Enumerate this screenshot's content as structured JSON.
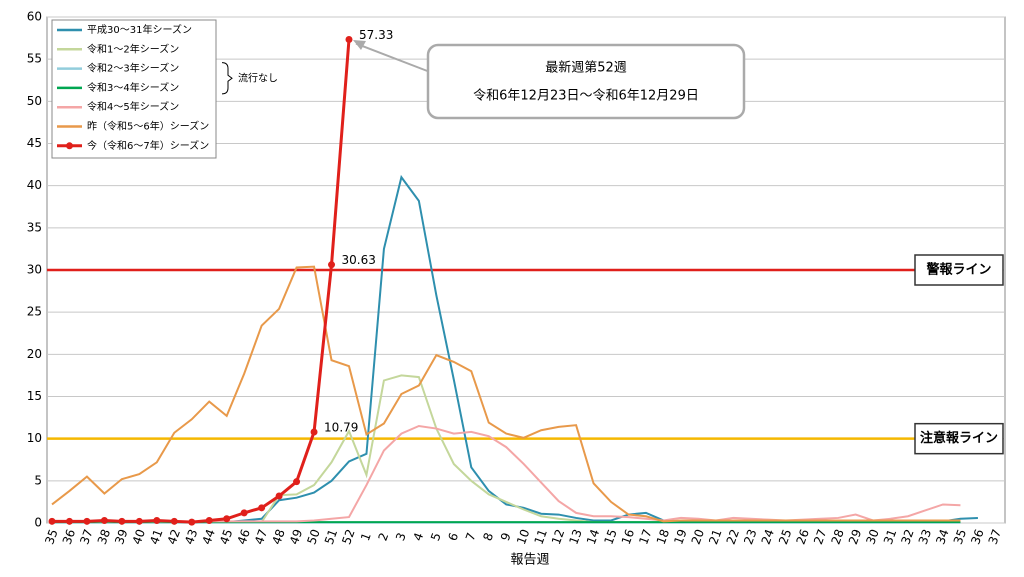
{
  "chart_data": {
    "type": "line",
    "x_label": "報告週",
    "categories": [
      "35",
      "36",
      "37",
      "38",
      "39",
      "40",
      "41",
      "42",
      "43",
      "44",
      "45",
      "46",
      "47",
      "48",
      "49",
      "50",
      "51",
      "52",
      "1",
      "2",
      "3",
      "4",
      "5",
      "6",
      "7",
      "8",
      "9",
      "10",
      "11",
      "12",
      "13",
      "14",
      "15",
      "16",
      "17",
      "18",
      "19",
      "20",
      "21",
      "22",
      "23",
      "24",
      "25",
      "26",
      "27",
      "28",
      "29",
      "30",
      "31",
      "32",
      "33",
      "34",
      "35",
      "36",
      "37"
    ],
    "ylim": [
      0,
      60
    ],
    "yticks": [
      0,
      5,
      10,
      15,
      20,
      25,
      30,
      35,
      40,
      45,
      50,
      55,
      60
    ],
    "grid": true,
    "legend": "top-left",
    "legend_note": "流行なし",
    "series": [
      {
        "name": "平成30～31年シーズン",
        "color": "#2e8fae",
        "values": [
          0.1,
          0.1,
          0.1,
          0.1,
          0.1,
          0.1,
          0.1,
          0.1,
          0.1,
          0.1,
          0.1,
          0.3,
          0.5,
          2.7,
          3.0,
          3.6,
          5.0,
          7.3,
          8.2,
          32.5,
          41.0,
          38.2,
          27.0,
          17.0,
          6.6,
          3.8,
          2.2,
          1.8,
          1.1,
          1.0,
          0.6,
          0.3,
          0.3,
          1.0,
          1.2,
          0.3,
          0.2,
          0.2,
          0.2,
          0.2,
          0.2,
          0.2,
          0.2,
          0.2,
          0.2,
          0.2,
          0.2,
          0.2,
          0.2,
          0.2,
          0.2,
          0.2,
          0.5,
          0.6,
          null
        ]
      },
      {
        "name": "令和1～2年シーズン",
        "color": "#c4d79b",
        "values": [
          0.1,
          0.1,
          0.1,
          0.1,
          0.1,
          0.1,
          0.1,
          0.1,
          0.1,
          0.1,
          0.1,
          0.1,
          0.1,
          3.3,
          3.4,
          4.5,
          7.2,
          10.9,
          5.7,
          16.9,
          17.5,
          17.3,
          11.2,
          7.0,
          5.0,
          3.4,
          2.5,
          1.6,
          0.8,
          0.5,
          0.3,
          0.1,
          0.1,
          0.1,
          0.1,
          0.1,
          0.1,
          0.1,
          0.1,
          0.1,
          0.1,
          0.1,
          0.1,
          0.1,
          0.1,
          0.1,
          0.1,
          0.1,
          0.1,
          0.1,
          0.1,
          0.1,
          0.1,
          null,
          null
        ]
      },
      {
        "name": "令和2～3年シーズン",
        "color": "#92cddc",
        "values": [
          0.05,
          0.05,
          0.05,
          0.05,
          0.05,
          0.05,
          0.05,
          0.05,
          0.05,
          0.05,
          0.05,
          0.05,
          0.05,
          0.05,
          0.05,
          0.05,
          0.05,
          0.05,
          0.05,
          0.05,
          0.05,
          0.05,
          0.05,
          0.05,
          0.05,
          0.05,
          0.05,
          0.05,
          0.05,
          0.05,
          0.05,
          0.05,
          0.05,
          0.05,
          0.05,
          0.05,
          0.05,
          0.05,
          0.05,
          0.05,
          0.05,
          0.05,
          0.05,
          0.05,
          0.05,
          0.05,
          0.05,
          0.05,
          0.05,
          0.05,
          0.05,
          0.05,
          0.05,
          null,
          null
        ]
      },
      {
        "name": "令和3～4年シーズン",
        "color": "#00a651",
        "values": [
          0.1,
          0.1,
          0.1,
          0.1,
          0.1,
          0.1,
          0.1,
          0.1,
          0.1,
          0.1,
          0.1,
          0.1,
          0.1,
          0.1,
          0.1,
          0.1,
          0.1,
          0.1,
          0.1,
          0.1,
          0.1,
          0.1,
          0.1,
          0.1,
          0.1,
          0.1,
          0.1,
          0.1,
          0.1,
          0.1,
          0.1,
          0.1,
          0.1,
          0.1,
          0.1,
          0.1,
          0.1,
          0.1,
          0.1,
          0.1,
          0.1,
          0.1,
          0.1,
          0.1,
          0.1,
          0.1,
          0.1,
          0.1,
          0.1,
          0.1,
          0.1,
          0.1,
          0.1,
          null,
          null
        ]
      },
      {
        "name": "令和4～5年シーズン",
        "color": "#f4a6a6",
        "values": [
          0.2,
          0.2,
          0.2,
          0.2,
          0.2,
          0.2,
          0.2,
          0.2,
          0.2,
          0.2,
          0.2,
          0.2,
          0.2,
          0.2,
          0.2,
          0.3,
          0.5,
          0.7,
          4.5,
          8.6,
          10.6,
          11.5,
          11.2,
          10.6,
          10.8,
          10.3,
          9.0,
          7.0,
          4.8,
          2.6,
          1.2,
          0.8,
          0.8,
          0.7,
          0.5,
          0.3,
          0.6,
          0.5,
          0.3,
          0.6,
          0.5,
          0.4,
          0.3,
          0.4,
          0.5,
          0.6,
          1.0,
          0.3,
          0.5,
          0.8,
          1.5,
          2.2,
          2.1,
          null,
          null
        ]
      },
      {
        "name": "昨（令和5～6年）シーズン",
        "color": "#e8994a",
        "values": [
          2.2,
          3.8,
          5.5,
          3.5,
          5.2,
          5.8,
          7.2,
          10.7,
          12.3,
          14.4,
          12.7,
          17.7,
          23.4,
          25.4,
          30.3,
          30.4,
          19.3,
          18.6,
          10.5,
          11.8,
          15.3,
          16.3,
          19.9,
          19.1,
          18.0,
          11.9,
          10.6,
          10.1,
          11.0,
          11.4,
          11.6,
          4.7,
          2.5,
          1.0,
          0.8,
          0.2,
          0.3,
          0.3,
          0.3,
          0.3,
          0.3,
          0.3,
          0.3,
          0.3,
          0.3,
          0.3,
          0.3,
          0.3,
          0.3,
          0.3,
          0.3,
          0.3,
          0.3,
          null,
          null
        ]
      },
      {
        "name": "今（令和6～7年）シーズン",
        "color": "#e0201b",
        "marker": "circle",
        "values": [
          0.2,
          0.2,
          0.2,
          0.3,
          0.2,
          0.2,
          0.3,
          0.2,
          0.1,
          0.3,
          0.5,
          1.2,
          1.8,
          3.2,
          4.9,
          10.79,
          30.63,
          57.33,
          null,
          null,
          null,
          null,
          null,
          null,
          null,
          null,
          null,
          null,
          null,
          null,
          null,
          null,
          null,
          null,
          null,
          null,
          null,
          null,
          null,
          null,
          null,
          null,
          null,
          null,
          null,
          null,
          null,
          null,
          null,
          null,
          null,
          null,
          null,
          null,
          null
        ],
        "value_labels": [
          null,
          null,
          null,
          null,
          null,
          null,
          null,
          null,
          null,
          null,
          null,
          null,
          null,
          null,
          null,
          "10.79",
          "30.63",
          "57.33",
          null,
          null,
          null,
          null,
          null,
          null,
          null,
          null,
          null,
          null,
          null,
          null,
          null,
          null,
          null,
          null,
          null,
          null,
          null,
          null,
          null,
          null,
          null,
          null,
          null,
          null,
          null,
          null,
          null,
          null,
          null,
          null,
          null,
          null,
          null,
          null,
          null
        ]
      }
    ],
    "reference_lines": [
      {
        "value": 30,
        "label": "警報ライン",
        "color": "#e0201b"
      },
      {
        "value": 10,
        "label": "注意報ライン",
        "color": "#f5b800"
      }
    ],
    "annotation": {
      "lines": [
        "最新週第52週",
        "令和6年12月23日～令和6年12月29日"
      ]
    }
  }
}
